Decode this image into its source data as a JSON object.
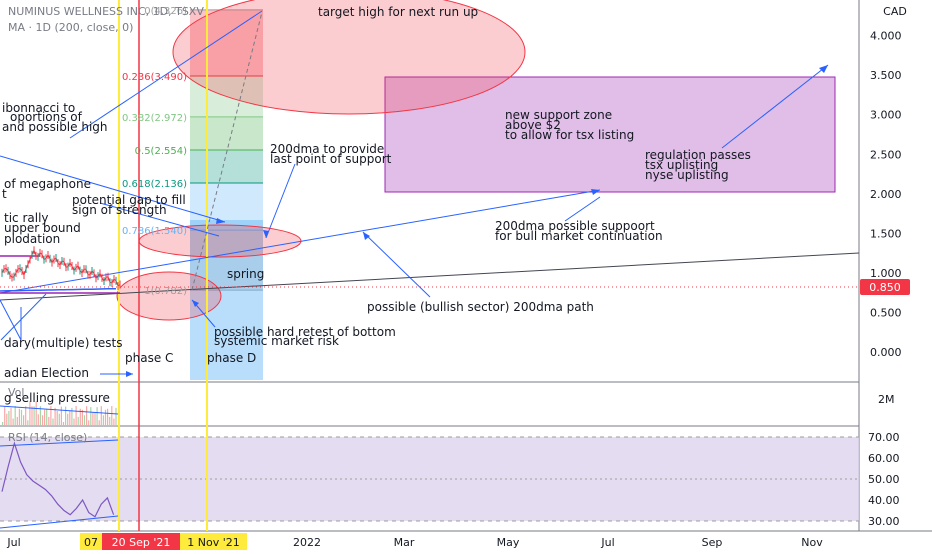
{
  "header": {
    "symbol_line": "NUMINUS WELLNESS INC, 1D, TSXV",
    "indicator_line": "MA · 1D (200, close, 0)"
  },
  "price_scale": {
    "currency": "CAD",
    "ticks": [
      "4.000",
      "3.500",
      "3.000",
      "2.500",
      "2.000",
      "1.500",
      "1.000",
      "0.500",
      "0.000"
    ],
    "last_price": "0.850",
    "last_price_color": "#f23645"
  },
  "volume_scale": {
    "ticks": [
      "2M"
    ]
  },
  "volume_label": "Vol",
  "rsi": {
    "label": "RSI (14, close)",
    "ticks": [
      "70.00",
      "60.00",
      "50.00",
      "40.00",
      "30.00"
    ],
    "band_color": "#ddd3ec",
    "line_color": "#7e57c2"
  },
  "time_axis": {
    "labels": [
      "Jul",
      "2022",
      "Mar",
      "May",
      "Jul",
      "Sep",
      "Nov"
    ],
    "highlight_labels": [
      "07",
      "20 Sep '21",
      "1 Nov '21"
    ]
  },
  "fibonacci": {
    "levels": [
      "0(4.326)",
      "0.236(3.490)",
      "0.382(2.972)",
      "0.5(2.554)",
      "0.618(2.136)",
      "0.786(1.540)",
      "1(0.782)"
    ],
    "colors": [
      "#9e9e9e",
      "#f23645",
      "#81c784",
      "#4caf50",
      "#089981",
      "#64b5f6",
      "#9e9e9e"
    ]
  },
  "annotations": {
    "target_high": "target high for next run up",
    "fib_note_1": "ibonnacci to",
    "fib_note_2": "oportions of",
    "fib_note_3": "and possible high",
    "support_200dma_1": "200dma to provide",
    "support_200dma_2": "last point of support",
    "new_support_1": "new support zone",
    "new_support_2": "above $2",
    "new_support_3": "to allow for tsx listing",
    "regulation_1": "regulation passes",
    "regulation_2": "tsx uplisting",
    "regulation_3": "nyse uplisting",
    "megaphone_1": "of megaphone",
    "megaphone_2": "t",
    "gap_1": "potential gap to fill",
    "gap_2": "sign of strength",
    "rally_1": "tic rally",
    "rally_2": "upper bound",
    "rally_3": "plodation",
    "bull_1": "200dma possible suppoort",
    "bull_2": "for bull market continuation",
    "spring": "spring",
    "bullish_path": "possible (bullish sector) 200dma path",
    "retest_1": "possible hard retest of bottom",
    "retest_2": "systemic market risk",
    "tests": "dary(multiple) tests",
    "phase_c": "phase C",
    "phase_d": "phase D",
    "election": "adian Election",
    "selling": "g selling pressure"
  },
  "chart_data": {
    "type": "line",
    "title": "NUMINUS WELLNESS INC, 1D, TSXV",
    "ylabel": "CAD",
    "ylim": [
      -0.2,
      4.6
    ],
    "price_series": {
      "name": "price",
      "x": [
        "Jul '21",
        "Aug '21",
        "Sep '21",
        "Oct '21"
      ],
      "values": [
        1.0,
        1.2,
        0.95,
        0.85
      ]
    },
    "series": [
      {
        "name": "MA 1D (200, close, 0)",
        "values": [
          0.82,
          0.84,
          0.86,
          0.89
        ]
      }
    ],
    "fib_levels": [
      {
        "ratio": 0,
        "price": 4.326
      },
      {
        "ratio": 0.236,
        "price": 3.49
      },
      {
        "ratio": 0.382,
        "price": 2.972
      },
      {
        "ratio": 0.5,
        "price": 2.554
      },
      {
        "ratio": 0.618,
        "price": 2.136
      },
      {
        "ratio": 0.786,
        "price": 1.54
      },
      {
        "ratio": 1,
        "price": 0.782
      }
    ],
    "rsi": {
      "ylim": [
        26,
        74
      ],
      "values": [
        44,
        56,
        67,
        58,
        52,
        49,
        47,
        45,
        42,
        38,
        35,
        33,
        36,
        40,
        34,
        32,
        38,
        41,
        33
      ]
    },
    "legend": "top-left"
  }
}
